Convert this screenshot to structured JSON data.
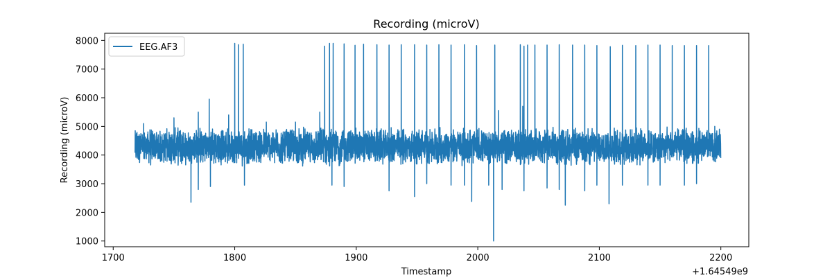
{
  "chart_data": {
    "type": "line",
    "title": "Recording (microV)",
    "xlabel": "Timestamp",
    "ylabel": "Recording (microV)",
    "x_offset_label": "+1.64549e9",
    "xlim": [
      1693,
      2223
    ],
    "ylim": [
      800,
      8250
    ],
    "x_ticks": [
      1700,
      1800,
      1900,
      2000,
      2100,
      2200
    ],
    "y_ticks": [
      1000,
      2000,
      3000,
      4000,
      5000,
      6000,
      7000,
      8000
    ],
    "grid": false,
    "legend_position": "upper-left",
    "color": "#1f77b4",
    "series": [
      {
        "name": "EEG.AF3",
        "x_start": 1718,
        "x_end": 2200,
        "baseline": 4300,
        "spikes_high": [
          [
            1800,
            7900
          ],
          [
            1803,
            7850
          ],
          [
            1807,
            7870
          ],
          [
            1874,
            7800
          ],
          [
            1878,
            7900
          ],
          [
            1881,
            7900
          ],
          [
            1890,
            7880
          ],
          [
            1899,
            7830
          ],
          [
            1906,
            7870
          ],
          [
            1917,
            7850
          ],
          [
            1927,
            7840
          ],
          [
            1937,
            7850
          ],
          [
            1948,
            7850
          ],
          [
            1958,
            7840
          ],
          [
            1968,
            7850
          ],
          [
            1978,
            7840
          ],
          [
            1989,
            7850
          ],
          [
            1999,
            7820
          ],
          [
            2014,
            7840
          ],
          [
            2035,
            7850
          ],
          [
            2038,
            7800
          ],
          [
            2041,
            7840
          ],
          [
            2047,
            7840
          ],
          [
            2057,
            7840
          ],
          [
            2067,
            7850
          ],
          [
            2078,
            7840
          ],
          [
            2088,
            7840
          ],
          [
            2098,
            7820
          ],
          [
            2109,
            7780
          ],
          [
            2119,
            7830
          ],
          [
            2130,
            7820
          ],
          [
            2140,
            7840
          ],
          [
            2150,
            7840
          ],
          [
            2160,
            7820
          ],
          [
            2170,
            7820
          ],
          [
            2180,
            7820
          ],
          [
            2190,
            7820
          ]
        ],
        "spikes_low": [
          [
            1764,
            2350
          ],
          [
            1770,
            2800
          ],
          [
            1780,
            2900
          ],
          [
            1808,
            2950
          ],
          [
            1880,
            2950
          ],
          [
            1890,
            2900
          ],
          [
            1927,
            2750
          ],
          [
            1948,
            2550
          ],
          [
            1958,
            3000
          ],
          [
            1978,
            2950
          ],
          [
            1989,
            2950
          ],
          [
            1995,
            2380
          ],
          [
            2009,
            2950
          ],
          [
            2013,
            1000
          ],
          [
            2020,
            2800
          ],
          [
            2038,
            2750
          ],
          [
            2057,
            2850
          ],
          [
            2067,
            2800
          ],
          [
            2072,
            2250
          ],
          [
            2088,
            2750
          ],
          [
            2098,
            2950
          ],
          [
            2108,
            2300
          ],
          [
            2119,
            2950
          ],
          [
            2140,
            2950
          ],
          [
            2150,
            2950
          ],
          [
            2170,
            2950
          ],
          [
            2180,
            3000
          ]
        ],
        "local_peaks": [
          [
            1725,
            5100
          ],
          [
            1750,
            5300
          ],
          [
            1770,
            5500
          ],
          [
            1779,
            5950
          ],
          [
            1795,
            5400
          ],
          [
            1826,
            5150
          ],
          [
            1850,
            5150
          ],
          [
            1870,
            5500
          ],
          [
            1890,
            5650
          ],
          [
            2017,
            5550
          ],
          [
            2037,
            5700
          ],
          [
            2150,
            5400
          ],
          [
            2195,
            5000
          ]
        ]
      }
    ]
  }
}
